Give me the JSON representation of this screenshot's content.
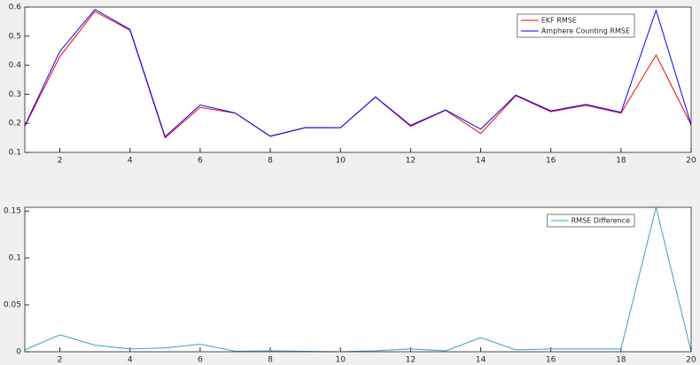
{
  "chart_data": [
    {
      "type": "line",
      "x": [
        1,
        2,
        3,
        4,
        5,
        6,
        7,
        8,
        9,
        10,
        11,
        12,
        13,
        14,
        15,
        16,
        17,
        18,
        19,
        20
      ],
      "xlim": [
        1,
        20
      ],
      "xticks": [
        2,
        4,
        6,
        8,
        10,
        12,
        14,
        16,
        18,
        20
      ],
      "ylim": [
        0.1,
        0.6
      ],
      "yticks": [
        0.1,
        0.2,
        0.3,
        0.4,
        0.5,
        0.6
      ],
      "legend": "northeast",
      "series": [
        {
          "name": "EKF RMSE",
          "color": "#ff0000",
          "values": [
            0.19,
            0.43,
            0.585,
            0.52,
            0.15,
            0.255,
            0.235,
            0.155,
            0.185,
            0.185,
            0.29,
            0.19,
            0.245,
            0.165,
            0.295,
            0.24,
            0.262,
            0.235,
            0.435,
            0.195
          ]
        },
        {
          "name": "Amphere Counting RMSE",
          "color": "#0000ff",
          "values": [
            0.192,
            0.448,
            0.592,
            0.523,
            0.154,
            0.263,
            0.2355,
            0.156,
            0.1855,
            0.185,
            0.291,
            0.193,
            0.246,
            0.18,
            0.297,
            0.243,
            0.265,
            0.238,
            0.589,
            0.195
          ]
        }
      ]
    },
    {
      "type": "line",
      "x": [
        1,
        2,
        3,
        4,
        5,
        6,
        7,
        8,
        9,
        10,
        11,
        12,
        13,
        14,
        15,
        16,
        17,
        18,
        19,
        20
      ],
      "xlim": [
        1,
        20
      ],
      "xticks": [
        2,
        4,
        6,
        8,
        10,
        12,
        14,
        16,
        18,
        20
      ],
      "ylim": [
        0,
        0.154
      ],
      "yticks": [
        0,
        0.05,
        0.1,
        0.15
      ],
      "legend": "northeast",
      "series": [
        {
          "name": "RMSE Difference",
          "color": "#3a9fc4",
          "values": [
            0.002,
            0.018,
            0.007,
            0.003,
            0.004,
            0.008,
            0.0005,
            0.001,
            0.0005,
            0,
            0.001,
            0.003,
            0.001,
            0.015,
            0.002,
            0.003,
            0.003,
            0.003,
            0.154,
            0
          ]
        }
      ]
    }
  ]
}
